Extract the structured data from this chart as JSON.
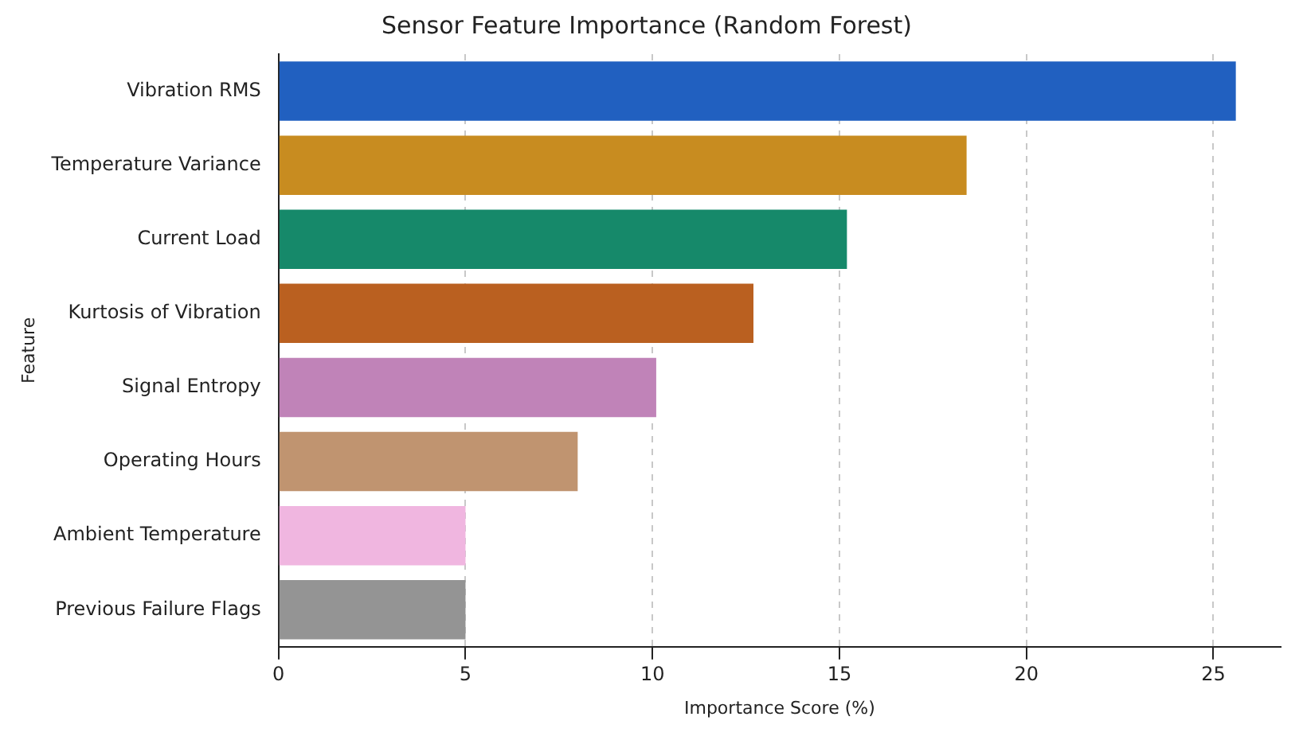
{
  "chart_data": {
    "type": "bar",
    "orientation": "horizontal",
    "title": "Sensor Feature Importance (Random Forest)",
    "xlabel": "Importance Score (%)",
    "ylabel": "Feature",
    "categories": [
      "Vibration RMS",
      "Temperature Variance",
      "Current Load",
      "Kurtosis of Vibration",
      "Signal Entropy",
      "Operating Hours",
      "Ambient Temperature",
      "Previous Failure Flags"
    ],
    "values": [
      25.6,
      18.4,
      15.2,
      12.7,
      10.1,
      8.0,
      5.0,
      5.0
    ],
    "colors": [
      "#2160c0",
      "#c88c20",
      "#16896a",
      "#ba6020",
      "#c083b8",
      "#c09470",
      "#f0b6e0",
      "#949494"
    ],
    "xlim": [
      0,
      26.8
    ],
    "xticks": [
      0,
      5,
      10,
      15,
      20,
      25
    ],
    "grid": "x",
    "legend": false
  }
}
